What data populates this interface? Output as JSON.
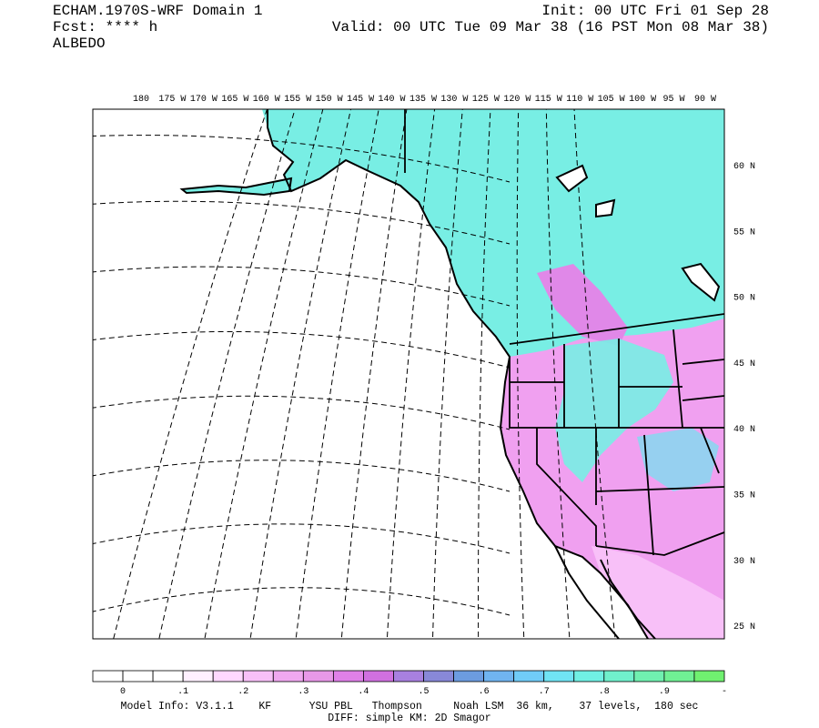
{
  "header": {
    "left": [
      "ECHAM.1970S-WRF Domain 1",
      "Fcst: **** h",
      "ALBEDO"
    ],
    "right": [
      "Init: 00 UTC Fri 01 Sep 28",
      "Valid: 00 UTC Tue 09 Mar 38 (16 PST Mon 08 Mar 38)"
    ]
  },
  "map": {
    "lon_labels": [
      "180",
      "175 W",
      "170 W",
      "165 W",
      "160 W",
      "155 W",
      "150 W",
      "145 W",
      "140 W",
      "135 W",
      "130 W",
      "125 W",
      "120 W",
      "115 W",
      "110 W",
      "105 W",
      "100 W",
      "95 W",
      "90 W"
    ],
    "lat_labels": [
      "60 N",
      "55 N",
      "50 N",
      "45 N",
      "40 N",
      "35 N",
      "30 N",
      "25 N"
    ]
  },
  "colorbar": {
    "colors": [
      "#ffffff",
      "#ffffff",
      "#ffffff",
      "#fff0ff",
      "#ffd8ff",
      "#f8c0f8",
      "#f0a8f0",
      "#e898e8",
      "#e080e8",
      "#d070e0",
      "#a880e0",
      "#8888d8",
      "#6c9ce0",
      "#70b4f0",
      "#70ccf8",
      "#70e4f4",
      "#70f0e4",
      "#70f0cc",
      "#70f0b0",
      "#70f094",
      "#70f070"
    ],
    "labels": [
      "0",
      ".1",
      ".2",
      ".3",
      ".4",
      ".5",
      ".6",
      ".7",
      ".8",
      ".9",
      "-"
    ]
  },
  "footer": [
    "Model Info: V3.1.1    KF      YSU PBL   Thompson     Noah LSM  36 km,    37 levels,  180 sec",
    "DIFF: simple KM: 2D Smagor"
  ]
}
